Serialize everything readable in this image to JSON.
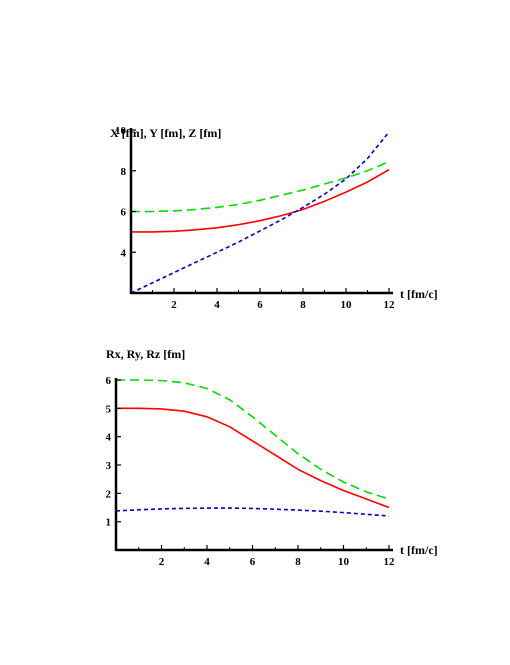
{
  "chart_data": [
    {
      "type": "line",
      "title": "",
      "ylabel": "X [fm],  Y [fm],  Z [fm]",
      "xlabel": "t [fm/c]",
      "xlim": [
        0,
        12
      ],
      "ylim": [
        2,
        10
      ],
      "x_ticks": [
        2,
        4,
        6,
        8,
        10,
        12
      ],
      "y_ticks": [
        4,
        6,
        8,
        10
      ],
      "grid": false,
      "series": [
        {
          "color": "#ff0000",
          "style": "solid",
          "x": [
            0,
            1,
            2,
            3,
            4,
            5,
            6,
            7,
            8,
            9,
            10,
            11,
            12
          ],
          "y": [
            5.0,
            5.0,
            5.03,
            5.1,
            5.2,
            5.35,
            5.55,
            5.8,
            6.1,
            6.5,
            6.95,
            7.45,
            8.05
          ]
        },
        {
          "color": "#00dd00",
          "style": "dashed",
          "x": [
            0,
            1,
            2,
            3,
            4,
            5,
            6,
            7,
            8,
            9,
            10,
            11,
            12
          ],
          "y": [
            6.0,
            6.0,
            6.03,
            6.1,
            6.2,
            6.35,
            6.55,
            6.8,
            7.05,
            7.35,
            7.65,
            8.0,
            8.45
          ]
        },
        {
          "color": "#0000cc",
          "style": "dotted",
          "x": [
            0,
            1,
            2,
            3,
            4,
            5,
            6,
            7,
            8,
            9,
            10,
            11,
            12
          ],
          "y": [
            2.0,
            2.5,
            3.0,
            3.5,
            4.0,
            4.5,
            5.05,
            5.6,
            6.2,
            6.85,
            7.6,
            8.6,
            9.9
          ]
        }
      ]
    },
    {
      "type": "line",
      "title": "",
      "ylabel": "Rx,  Ry, Rz [fm]",
      "xlabel": "t [fm/c]",
      "xlim": [
        0,
        12
      ],
      "ylim": [
        0,
        6
      ],
      "x_ticks": [
        2,
        4,
        6,
        8,
        10,
        12
      ],
      "y_ticks": [
        1,
        2,
        3,
        4,
        5,
        6
      ],
      "grid": false,
      "series": [
        {
          "color": "#ff0000",
          "style": "solid",
          "x": [
            0,
            1,
            2,
            3,
            4,
            5,
            6,
            7,
            8,
            9,
            10,
            11,
            12
          ],
          "y": [
            5.0,
            5.0,
            4.98,
            4.9,
            4.7,
            4.35,
            3.85,
            3.35,
            2.85,
            2.45,
            2.1,
            1.8,
            1.5
          ]
        },
        {
          "color": "#00dd00",
          "style": "dashed",
          "x": [
            0,
            1,
            2,
            3,
            4,
            5,
            6,
            7,
            8,
            9,
            10,
            11,
            12
          ],
          "y": [
            6.0,
            6.0,
            5.98,
            5.9,
            5.7,
            5.3,
            4.7,
            4.05,
            3.4,
            2.85,
            2.4,
            2.05,
            1.8
          ]
        },
        {
          "color": "#0000cc",
          "style": "dotted",
          "x": [
            0,
            1,
            2,
            3,
            4,
            5,
            6,
            7,
            8,
            9,
            10,
            11,
            12
          ],
          "y": [
            1.38,
            1.42,
            1.45,
            1.47,
            1.48,
            1.48,
            1.47,
            1.44,
            1.41,
            1.37,
            1.32,
            1.26,
            1.2
          ]
        },
        {
          "color": "#cc0000",
          "style": "solid",
          "x": [
            0,
            12
          ],
          "y": [
            0,
            0
          ]
        }
      ]
    }
  ]
}
